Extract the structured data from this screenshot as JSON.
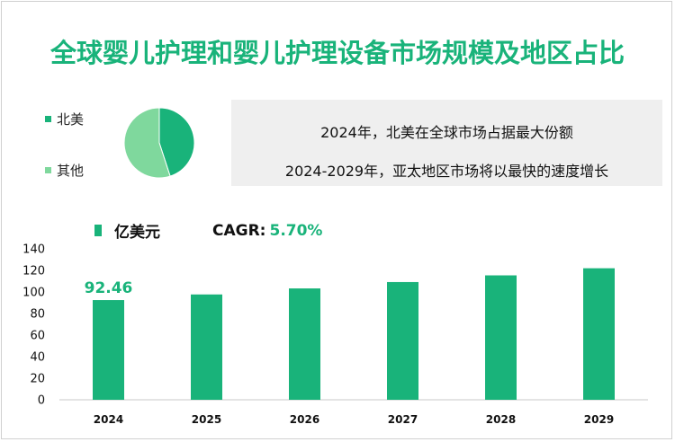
{
  "title": "全球婴儿护理和婴儿护理设备市场规模及地区占比",
  "pie": {
    "legend": [
      {
        "label": "北美",
        "color": "#19b37a"
      },
      {
        "label": "其他",
        "color": "#7fd89d"
      }
    ],
    "shares": [
      0.45,
      0.55
    ]
  },
  "info": {
    "line1": "2024年，北美在全球市场占据最大份额",
    "line2": "2024-2029年，亚太地区市场将以最快的速度增长"
  },
  "legend_unit": "亿美元",
  "cagr": {
    "label": "CAGR:",
    "value": "5.70%"
  },
  "colors": {
    "accent": "#19b37a",
    "light": "#7fd89d"
  },
  "chart_data": {
    "type": "bar",
    "categories": [
      "2024",
      "2025",
      "2026",
      "2027",
      "2028",
      "2029"
    ],
    "values": [
      92.46,
      97.7,
      103.3,
      109.2,
      115.4,
      122.0
    ],
    "data_labels": {
      "2024": "92.46"
    },
    "yticks": [
      "0",
      "20",
      "40",
      "60",
      "80",
      "100",
      "120",
      "140"
    ],
    "ylim": [
      0,
      140
    ],
    "ylabel": "亿美元",
    "xlabel": ""
  }
}
